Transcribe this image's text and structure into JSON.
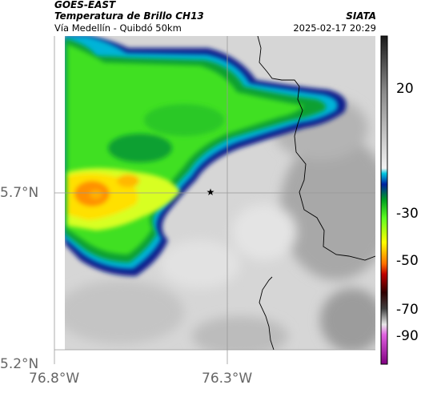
{
  "header": {
    "satellite": "GOES-EAST",
    "product": "Temperatura de Brillo CH13",
    "route": "Vía Medellín - Quibdó 50km",
    "source": "SIATA",
    "datetime": "2025-02-17 20:29"
  },
  "axes": {
    "lat_ticks": [
      {
        "label": "5.7°N",
        "value": 5.7
      },
      {
        "label": "5.2°N",
        "value": 5.2
      }
    ],
    "lon_ticks": [
      {
        "label": "76.8°W",
        "value": -76.8
      },
      {
        "label": "76.3°W",
        "value": -76.3
      }
    ]
  },
  "colorbar": {
    "range": [
      -93,
      31
    ],
    "ticks": [
      {
        "label": "20",
        "value": 20
      },
      {
        "label": "-30",
        "value": -30
      },
      {
        "label": "-50",
        "value": -50
      },
      {
        "label": "-70",
        "value": -70
      },
      {
        "label": "-90",
        "value": -90
      }
    ],
    "stops": [
      {
        "t": 31,
        "color": "#1a1a1a"
      },
      {
        "t": 10,
        "color": "#8a8a8a"
      },
      {
        "t": -19,
        "color": "#f2f2f2"
      },
      {
        "t": -21,
        "color": "#00c8e0"
      },
      {
        "t": -25,
        "color": "#0020a0"
      },
      {
        "t": -31,
        "color": "#00a020"
      },
      {
        "t": -38,
        "color": "#60ff20"
      },
      {
        "t": -47,
        "color": "#ffff00"
      },
      {
        "t": -55,
        "color": "#ff7000"
      },
      {
        "t": -59,
        "color": "#c00000"
      },
      {
        "t": -66,
        "color": "#300000"
      },
      {
        "t": -72,
        "color": "#404040"
      },
      {
        "t": -78,
        "color": "#e8e8e8"
      },
      {
        "t": -82,
        "color": "#e060e0"
      },
      {
        "t": -93,
        "color": "#800080"
      }
    ]
  },
  "marker": {
    "symbol": "★",
    "lat": 5.7,
    "lon": -76.35
  },
  "colors": {
    "border": "#000000",
    "grid": "#999999"
  }
}
